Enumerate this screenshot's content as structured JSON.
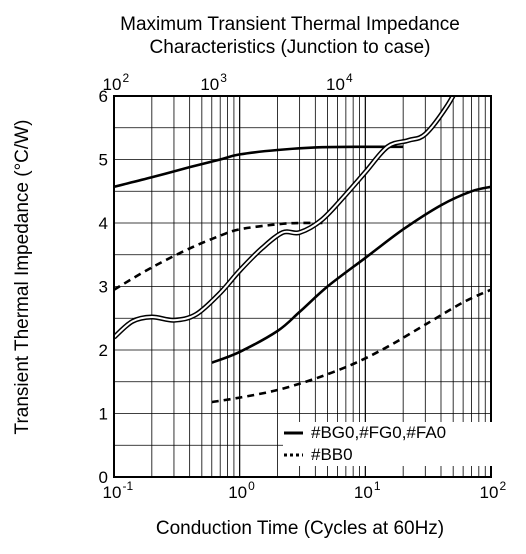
{
  "chart_data": {
    "type": "line",
    "title": "Maximum Transient Thermal Impedance",
    "subtitle": "Characteristics (Junction to case)",
    "xlabel": "Conduction Time (Cycles at 60Hz)",
    "ylabel": "Transient Thermal Impedance  (°C/W)",
    "x_scale": "log",
    "xlim": [
      0.1,
      100
    ],
    "ylim": [
      0,
      6
    ],
    "grid": true,
    "x_ticks": [
      {
        "value": 0.1,
        "base": "10",
        "exp": "-1"
      },
      {
        "value": 1,
        "base": "10",
        "exp": "0"
      },
      {
        "value": 10,
        "base": "10",
        "exp": "1"
      },
      {
        "value": 100,
        "base": "10",
        "exp": "2"
      }
    ],
    "y_ticks": [
      "0",
      "1",
      "2",
      "3",
      "4",
      "5",
      "6"
    ],
    "top_axis": {
      "scale": "log",
      "ticks": [
        {
          "value": 0.1,
          "base": "10",
          "exp": "2"
        },
        {
          "value": 0.6,
          "base": "10",
          "exp": "3"
        },
        {
          "value": 6,
          "base": "10",
          "exp": "4"
        }
      ]
    },
    "legend_position": "bottom-right",
    "legend": [
      {
        "label": "#BG0,#FG0,#FA0",
        "style": "solid"
      },
      {
        "label": "#BB0",
        "style": "dashed"
      }
    ],
    "series": [
      {
        "group": "#BG0,#FG0,#FA0",
        "style": "solid",
        "x": [
          0.1,
          0.2,
          0.4,
          0.7,
          1,
          2,
          4,
          10,
          20
        ],
        "y": [
          4.57,
          4.72,
          4.88,
          5.0,
          5.08,
          5.15,
          5.19,
          5.2,
          5.2
        ]
      },
      {
        "group": "#BB0",
        "style": "dashed",
        "x": [
          0.1,
          0.2,
          0.4,
          0.7,
          1,
          2,
          3,
          5
        ],
        "y": [
          2.95,
          3.3,
          3.6,
          3.8,
          3.9,
          3.98,
          4.0,
          4.0
        ]
      },
      {
        "group": "#BG0,#FG0,#FA0",
        "style": "solid",
        "x": [
          0.6,
          1,
          2,
          3,
          5,
          10,
          20,
          40,
          70,
          100
        ],
        "y": [
          1.8,
          1.97,
          2.3,
          2.6,
          3.0,
          3.45,
          3.9,
          4.28,
          4.5,
          4.57
        ]
      },
      {
        "group": "#BB0",
        "style": "dashed",
        "x": [
          0.6,
          1,
          2,
          4,
          8,
          15,
          30,
          60,
          100
        ],
        "y": [
          1.18,
          1.25,
          1.37,
          1.55,
          1.78,
          2.05,
          2.4,
          2.75,
          2.95
        ]
      },
      {
        "group": "top-axis",
        "style": "double",
        "x": [
          0.1,
          0.14,
          0.2,
          0.3,
          0.45,
          0.7,
          1,
          1.5,
          2.2,
          3,
          4.5,
          7,
          10,
          15,
          22,
          30,
          45,
          60,
          70
        ],
        "y": [
          2.2,
          2.45,
          2.52,
          2.47,
          2.56,
          2.9,
          3.25,
          3.6,
          3.85,
          3.85,
          4.05,
          4.45,
          4.8,
          5.2,
          5.3,
          5.4,
          5.85,
          6.3,
          6.5
        ]
      }
    ]
  }
}
